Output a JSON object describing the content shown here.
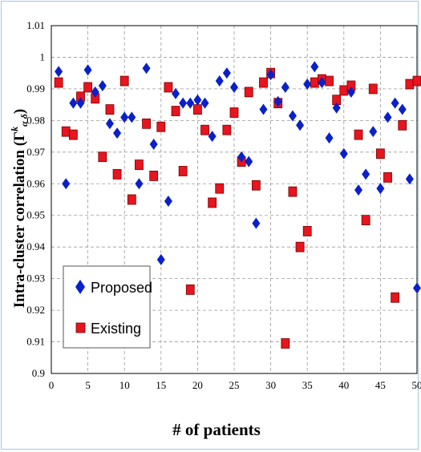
{
  "chart_data": {
    "type": "scatter",
    "xlabel": "# of patients",
    "ylabel_main": "Intra-cluster correlation (Γ",
    "ylabel_sup": "k",
    "ylabel_sub": "α δ",
    "ylabel_close": ")",
    "xlim": [
      0,
      50
    ],
    "ylim": [
      0.9,
      1.01
    ],
    "x_ticks": [
      0,
      5,
      10,
      15,
      20,
      25,
      30,
      35,
      40,
      45,
      50
    ],
    "y_ticks": [
      "0.9",
      "0.91",
      "0.92",
      "0.93",
      "0.94",
      "0.95",
      "0.96",
      "0.97",
      "0.98",
      "0.99",
      "1",
      "1.01"
    ],
    "grid": "horizontal and vertical dashed",
    "legend_position": "bottom-left",
    "series": [
      {
        "name": "Proposed",
        "marker": "diamond",
        "color": "#0a20c8",
        "x": [
          1,
          2,
          3,
          4,
          5,
          6,
          7,
          8,
          9,
          10,
          11,
          12,
          13,
          14,
          15,
          16,
          17,
          18,
          19,
          20,
          21,
          22,
          23,
          24,
          25,
          26,
          27,
          28,
          29,
          30,
          31,
          32,
          33,
          34,
          35,
          36,
          37,
          38,
          39,
          40,
          41,
          42,
          43,
          44,
          45,
          46,
          47,
          48,
          49,
          50
        ],
        "y": [
          0.9955,
          0.96,
          0.9855,
          0.9855,
          0.996,
          0.989,
          0.991,
          0.979,
          0.976,
          0.981,
          0.981,
          0.96,
          0.9965,
          0.9725,
          0.936,
          0.9545,
          0.9885,
          0.9855,
          0.9855,
          0.9865,
          0.9855,
          0.975,
          0.9925,
          0.995,
          0.9905,
          0.9685,
          0.967,
          0.9475,
          0.9835,
          0.9945,
          0.986,
          0.9905,
          0.9815,
          0.9785,
          0.9915,
          0.997,
          0.992,
          0.9745,
          0.984,
          0.9695,
          0.989,
          0.958,
          0.963,
          0.9765,
          0.9585,
          0.981,
          0.9855,
          0.9835,
          0.9615,
          0.927
        ]
      },
      {
        "name": "Existing",
        "marker": "square",
        "color": "#e8141e",
        "x": [
          1,
          2,
          3,
          4,
          5,
          6,
          7,
          8,
          9,
          10,
          11,
          12,
          13,
          14,
          15,
          16,
          17,
          18,
          19,
          20,
          21,
          22,
          23,
          24,
          25,
          26,
          27,
          28,
          29,
          30,
          31,
          32,
          33,
          34,
          35,
          36,
          37,
          38,
          39,
          40,
          41,
          42,
          43,
          44,
          45,
          46,
          47,
          48,
          49,
          50
        ],
        "y": [
          0.992,
          0.9765,
          0.9755,
          0.9875,
          0.9905,
          0.987,
          0.9685,
          0.9835,
          0.963,
          0.9925,
          0.955,
          0.966,
          0.979,
          0.9625,
          0.978,
          0.9905,
          0.983,
          0.964,
          0.9265,
          0.9835,
          0.977,
          0.954,
          0.9585,
          0.977,
          0.9825,
          0.967,
          0.989,
          0.9595,
          0.992,
          0.995,
          0.9855,
          0.9095,
          0.9575,
          0.94,
          0.945,
          0.992,
          0.993,
          0.9925,
          0.9865,
          0.9895,
          0.991,
          0.9755,
          0.9485,
          0.99,
          0.9695,
          0.962,
          0.924,
          0.9785,
          0.9915,
          0.9925
        ]
      }
    ]
  }
}
